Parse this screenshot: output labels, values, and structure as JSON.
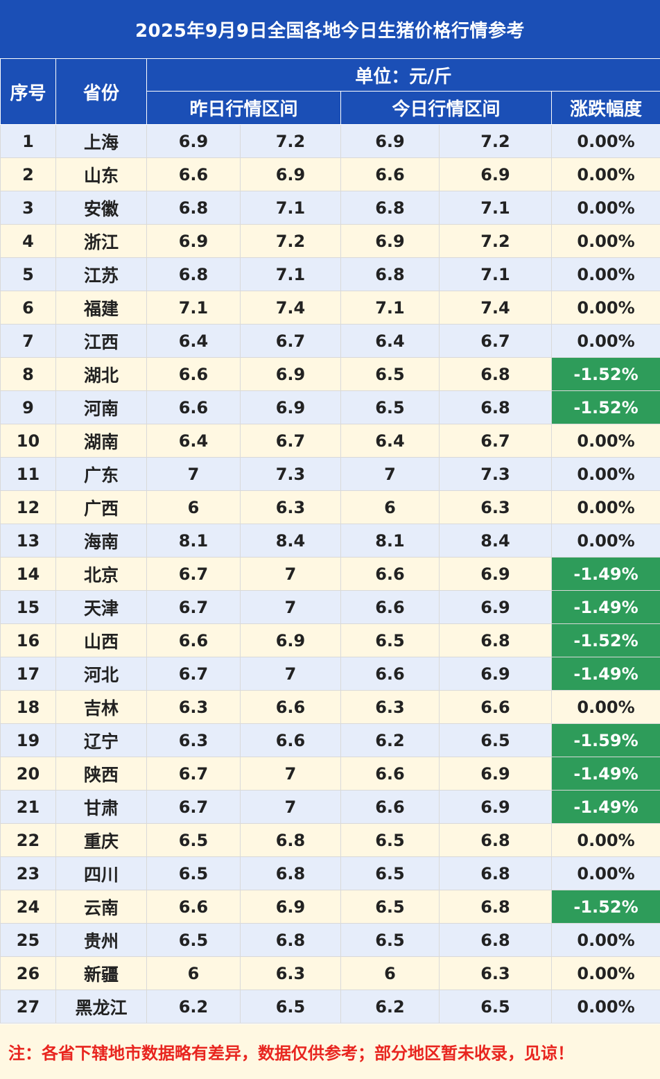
{
  "title": "2025年9月9日全国各地今日生猪价格行情参考",
  "header": {
    "index": "序号",
    "province": "省份",
    "unit": "单位：元/斤",
    "yesterday": "昨日行情区间",
    "today": "今日行情区间",
    "change": "涨跌幅度"
  },
  "colors": {
    "header_bg": "#1b4fb6",
    "row_blue": "#e6edfa",
    "row_yellow": "#fff8e2",
    "decline_bg": "#2e9c5a",
    "note_text": "#e8251f"
  },
  "rows": [
    {
      "idx": "1",
      "province": "上海",
      "y_low": "6.9",
      "y_high": "7.2",
      "t_low": "6.9",
      "t_high": "7.2",
      "change": "0.00%",
      "down": false
    },
    {
      "idx": "2",
      "province": "山东",
      "y_low": "6.6",
      "y_high": "6.9",
      "t_low": "6.6",
      "t_high": "6.9",
      "change": "0.00%",
      "down": false
    },
    {
      "idx": "3",
      "province": "安徽",
      "y_low": "6.8",
      "y_high": "7.1",
      "t_low": "6.8",
      "t_high": "7.1",
      "change": "0.00%",
      "down": false
    },
    {
      "idx": "4",
      "province": "浙江",
      "y_low": "6.9",
      "y_high": "7.2",
      "t_low": "6.9",
      "t_high": "7.2",
      "change": "0.00%",
      "down": false
    },
    {
      "idx": "5",
      "province": "江苏",
      "y_low": "6.8",
      "y_high": "7.1",
      "t_low": "6.8",
      "t_high": "7.1",
      "change": "0.00%",
      "down": false
    },
    {
      "idx": "6",
      "province": "福建",
      "y_low": "7.1",
      "y_high": "7.4",
      "t_low": "7.1",
      "t_high": "7.4",
      "change": "0.00%",
      "down": false
    },
    {
      "idx": "7",
      "province": "江西",
      "y_low": "6.4",
      "y_high": "6.7",
      "t_low": "6.4",
      "t_high": "6.7",
      "change": "0.00%",
      "down": false
    },
    {
      "idx": "8",
      "province": "湖北",
      "y_low": "6.6",
      "y_high": "6.9",
      "t_low": "6.5",
      "t_high": "6.8",
      "change": "-1.52%",
      "down": true
    },
    {
      "idx": "9",
      "province": "河南",
      "y_low": "6.6",
      "y_high": "6.9",
      "t_low": "6.5",
      "t_high": "6.8",
      "change": "-1.52%",
      "down": true
    },
    {
      "idx": "10",
      "province": "湖南",
      "y_low": "6.4",
      "y_high": "6.7",
      "t_low": "6.4",
      "t_high": "6.7",
      "change": "0.00%",
      "down": false
    },
    {
      "idx": "11",
      "province": "广东",
      "y_low": "7",
      "y_high": "7.3",
      "t_low": "7",
      "t_high": "7.3",
      "change": "0.00%",
      "down": false
    },
    {
      "idx": "12",
      "province": "广西",
      "y_low": "6",
      "y_high": "6.3",
      "t_low": "6",
      "t_high": "6.3",
      "change": "0.00%",
      "down": false
    },
    {
      "idx": "13",
      "province": "海南",
      "y_low": "8.1",
      "y_high": "8.4",
      "t_low": "8.1",
      "t_high": "8.4",
      "change": "0.00%",
      "down": false
    },
    {
      "idx": "14",
      "province": "北京",
      "y_low": "6.7",
      "y_high": "7",
      "t_low": "6.6",
      "t_high": "6.9",
      "change": "-1.49%",
      "down": true
    },
    {
      "idx": "15",
      "province": "天津",
      "y_low": "6.7",
      "y_high": "7",
      "t_low": "6.6",
      "t_high": "6.9",
      "change": "-1.49%",
      "down": true
    },
    {
      "idx": "16",
      "province": "山西",
      "y_low": "6.6",
      "y_high": "6.9",
      "t_low": "6.5",
      "t_high": "6.8",
      "change": "-1.52%",
      "down": true
    },
    {
      "idx": "17",
      "province": "河北",
      "y_low": "6.7",
      "y_high": "7",
      "t_low": "6.6",
      "t_high": "6.9",
      "change": "-1.49%",
      "down": true
    },
    {
      "idx": "18",
      "province": "吉林",
      "y_low": "6.3",
      "y_high": "6.6",
      "t_low": "6.3",
      "t_high": "6.6",
      "change": "0.00%",
      "down": false
    },
    {
      "idx": "19",
      "province": "辽宁",
      "y_low": "6.3",
      "y_high": "6.6",
      "t_low": "6.2",
      "t_high": "6.5",
      "change": "-1.59%",
      "down": true
    },
    {
      "idx": "20",
      "province": "陕西",
      "y_low": "6.7",
      "y_high": "7",
      "t_low": "6.6",
      "t_high": "6.9",
      "change": "-1.49%",
      "down": true
    },
    {
      "idx": "21",
      "province": "甘肃",
      "y_low": "6.7",
      "y_high": "7",
      "t_low": "6.6",
      "t_high": "6.9",
      "change": "-1.49%",
      "down": true
    },
    {
      "idx": "22",
      "province": "重庆",
      "y_low": "6.5",
      "y_high": "6.8",
      "t_low": "6.5",
      "t_high": "6.8",
      "change": "0.00%",
      "down": false
    },
    {
      "idx": "23",
      "province": "四川",
      "y_low": "6.5",
      "y_high": "6.8",
      "t_low": "6.5",
      "t_high": "6.8",
      "change": "0.00%",
      "down": false
    },
    {
      "idx": "24",
      "province": "云南",
      "y_low": "6.6",
      "y_high": "6.9",
      "t_low": "6.5",
      "t_high": "6.8",
      "change": "-1.52%",
      "down": true
    },
    {
      "idx": "25",
      "province": "贵州",
      "y_low": "6.5",
      "y_high": "6.8",
      "t_low": "6.5",
      "t_high": "6.8",
      "change": "0.00%",
      "down": false
    },
    {
      "idx": "26",
      "province": "新疆",
      "y_low": "6",
      "y_high": "6.3",
      "t_low": "6",
      "t_high": "6.3",
      "change": "0.00%",
      "down": false
    },
    {
      "idx": "27",
      "province": "黑龙江",
      "y_low": "6.2",
      "y_high": "6.5",
      "t_low": "6.2",
      "t_high": "6.5",
      "change": "0.00%",
      "down": false
    }
  ],
  "note": "注：各省下辖地市数据略有差异，数据仅供参考；部分地区暂未收录，见谅！"
}
